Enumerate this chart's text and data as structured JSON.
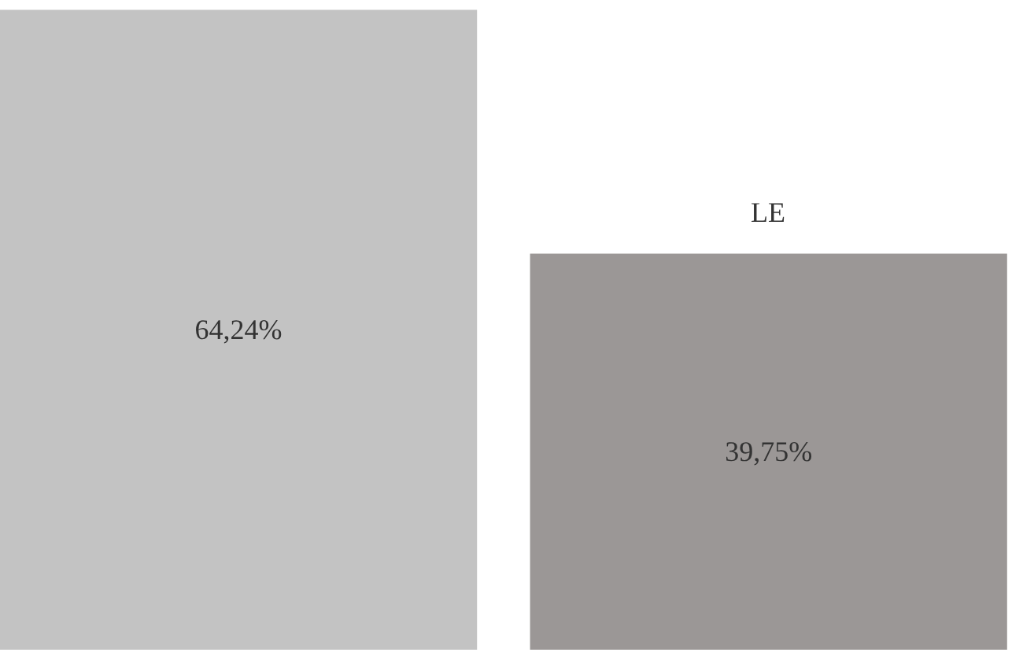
{
  "chart_data": {
    "type": "bar",
    "categories": [
      null,
      "LE"
    ],
    "values": [
      64.24,
      39.75
    ],
    "colors": [
      "#c3c3c3",
      "#9b9796"
    ],
    "value_labels": [
      "64,24%",
      "39,75%"
    ],
    "grid": false
  }
}
